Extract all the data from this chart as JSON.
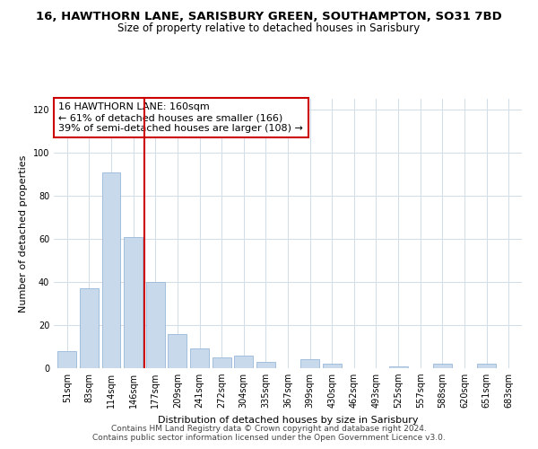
{
  "title": "16, HAWTHORN LANE, SARISBURY GREEN, SOUTHAMPTON, SO31 7BD",
  "subtitle": "Size of property relative to detached houses in Sarisbury",
  "xlabel": "Distribution of detached houses by size in Sarisbury",
  "ylabel": "Number of detached properties",
  "bar_labels": [
    "51sqm",
    "83sqm",
    "114sqm",
    "146sqm",
    "177sqm",
    "209sqm",
    "241sqm",
    "272sqm",
    "304sqm",
    "335sqm",
    "367sqm",
    "399sqm",
    "430sqm",
    "462sqm",
    "493sqm",
    "525sqm",
    "557sqm",
    "588sqm",
    "620sqm",
    "651sqm",
    "683sqm"
  ],
  "bar_values": [
    8,
    37,
    91,
    61,
    40,
    16,
    9,
    5,
    6,
    3,
    0,
    4,
    2,
    0,
    0,
    1,
    0,
    2,
    0,
    2,
    0
  ],
  "bar_color": "#c8d9ec",
  "bar_edge_color": "#9ab8d8",
  "vline_x_index": 3,
  "vline_color": "#cc0000",
  "annotation_line1": "16 HAWTHORN LANE: 160sqm",
  "annotation_line2": "← 61% of detached houses are smaller (166)",
  "annotation_line3": "39% of semi-detached houses are larger (108) →",
  "annotation_box_color": "#ffffff",
  "annotation_box_edge_color": "#cc0000",
  "ylim": [
    0,
    125
  ],
  "yticks": [
    0,
    20,
    40,
    60,
    80,
    100,
    120
  ],
  "footer_text": "Contains HM Land Registry data © Crown copyright and database right 2024.\nContains public sector information licensed under the Open Government Licence v3.0.",
  "background_color": "#ffffff",
  "grid_color": "#d0dde8",
  "title_fontsize": 9.5,
  "subtitle_fontsize": 8.5,
  "axis_label_fontsize": 8,
  "tick_fontsize": 7,
  "annotation_fontsize": 8,
  "footer_fontsize": 6.5
}
